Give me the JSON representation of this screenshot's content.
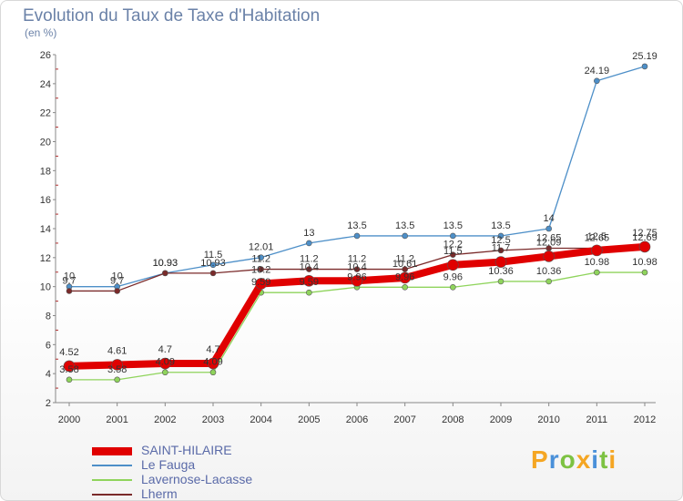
{
  "title": "Evolution du Taux de Taxe d'Habitation",
  "subtitle": "(en %)",
  "brand": {
    "text": "Proxiti",
    "colors": [
      "#f5a623",
      "#4a90d9",
      "#7dc242",
      "#f5a623",
      "#4a90d9",
      "#7dc242",
      "#f5a623"
    ]
  },
  "chart_data": {
    "type": "line",
    "title": "Evolution du Taux de Taxe d'Habitation",
    "ylabel": "(en %)",
    "xlabel": "",
    "ylim": [
      2,
      26
    ],
    "yticks": [
      2,
      4,
      6,
      8,
      10,
      12,
      14,
      16,
      18,
      20,
      22,
      24,
      26
    ],
    "x": [
      2000,
      2001,
      2002,
      2003,
      2004,
      2005,
      2006,
      2007,
      2008,
      2009,
      2010,
      2011,
      2012
    ],
    "grid": false,
    "legend_position": "bottom-left",
    "series": [
      {
        "name": "SAINT-HILAIRE",
        "color": "#e00000",
        "values": [
          4.52,
          4.61,
          4.7,
          4.7,
          10.2,
          10.4,
          10.4,
          10.61,
          11.5,
          11.7,
          12.09,
          12.5,
          12.75
        ],
        "labels": [
          "4.52",
          "4.61",
          "4.7",
          "4.7",
          "10.2",
          "10.4",
          "10.4",
          "10.61",
          "11.5",
          "11.7",
          "12.09",
          "12.5",
          "12.75"
        ]
      },
      {
        "name": "Le Fauga",
        "color": "#4d8fc8",
        "values": [
          10,
          10,
          10.93,
          11.5,
          12.01,
          13,
          13.5,
          13.5,
          13.5,
          13.5,
          14,
          24.19,
          25.19
        ],
        "labels": [
          "10",
          "10",
          "10.93",
          "11.5",
          "12.01",
          "13",
          "13.5",
          "13.5",
          "13.5",
          "13.5",
          "14",
          "24.19",
          "25.19"
        ]
      },
      {
        "name": "Lavernose-Lacasse",
        "color": "#8fd45c",
        "values": [
          3.58,
          3.58,
          4.09,
          4.09,
          9.59,
          9.59,
          9.96,
          9.96,
          9.96,
          10.36,
          10.36,
          10.98,
          10.98
        ],
        "labels": [
          "3.58",
          "3.58",
          "4.09",
          "4.09",
          "9.59",
          "9.59",
          "9.96",
          "9.96",
          "9.96",
          "10.36",
          "10.36",
          "10.98",
          "10.98"
        ]
      },
      {
        "name": "Lherm",
        "color": "#7a2a2a",
        "values": [
          9.7,
          9.7,
          10.93,
          10.93,
          11.2,
          11.2,
          11.2,
          11.2,
          12.2,
          12.5,
          12.65,
          12.65,
          12.69
        ],
        "labels": [
          "9.7",
          "9.7",
          "10.93",
          "10.93",
          "11.2",
          "11.2",
          "11.2",
          "11.2",
          "12.2",
          "12.5",
          "12.65",
          "12.65",
          "12.69"
        ]
      }
    ]
  }
}
